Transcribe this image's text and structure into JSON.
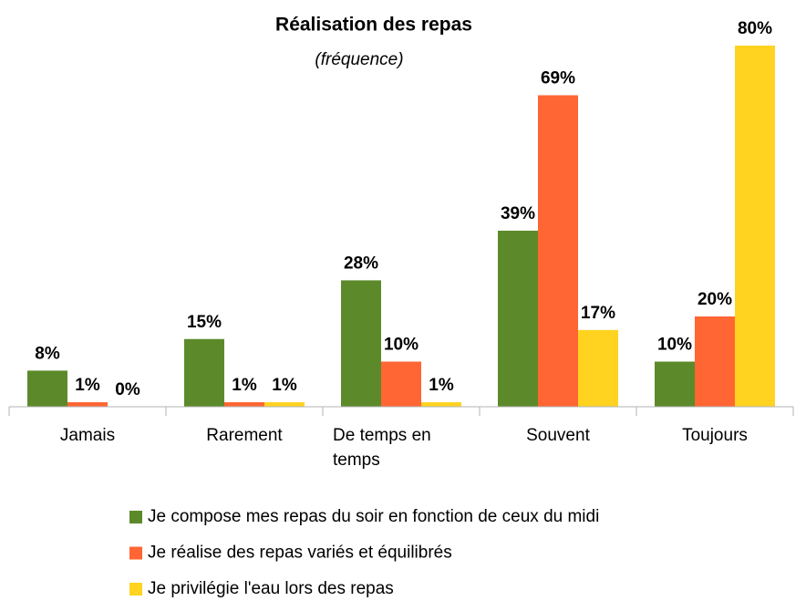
{
  "chart_data": {
    "type": "bar",
    "title": "Réalisation des repas",
    "subtitle": "(fréquence)",
    "categories": [
      "Jamais",
      "Rarement",
      "De temps en temps",
      "Souvent",
      "Toujours"
    ],
    "series": [
      {
        "name": "Je compose mes repas du soir en fonction de ceux du midi",
        "color": "#5c8a2a",
        "values": [
          8,
          15,
          28,
          39,
          10
        ],
        "value_labels": [
          "8%",
          "15%",
          "28%",
          "39%",
          "10%"
        ]
      },
      {
        "name": "Je réalise des repas variés et équilibrés",
        "color": "#ff6633",
        "values": [
          1,
          1,
          10,
          69,
          20
        ],
        "value_labels": [
          "1%",
          "1%",
          "10%",
          "69%",
          "20%"
        ]
      },
      {
        "name": "Je privilégie l'eau lors des repas",
        "color": "#ffd320",
        "values": [
          0,
          1,
          1,
          17,
          80
        ],
        "value_labels": [
          "0%",
          "1%",
          "1%",
          "17%",
          "80%"
        ]
      }
    ],
    "ylim": [
      0,
      80
    ]
  }
}
